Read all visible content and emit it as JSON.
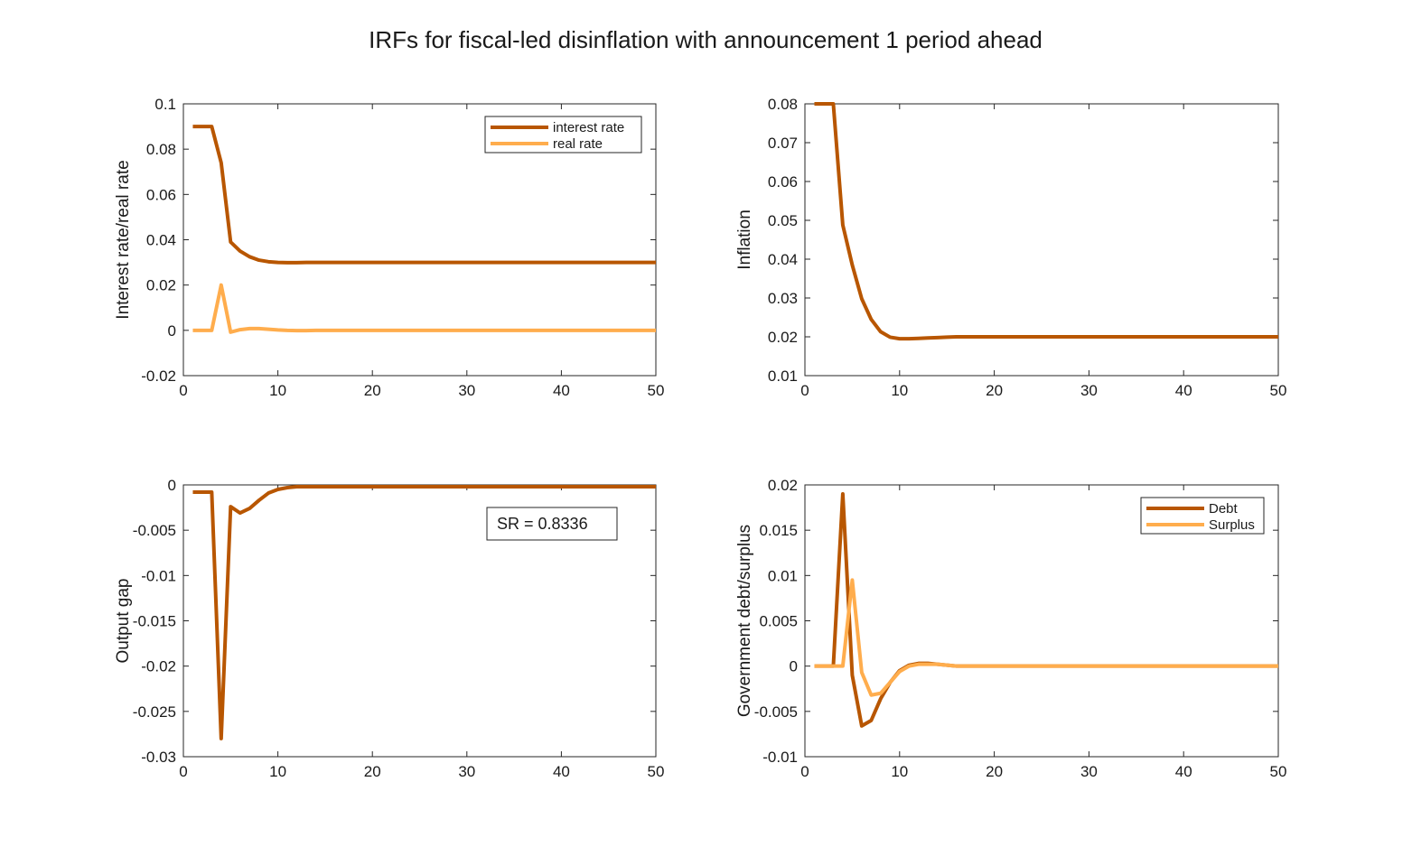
{
  "title": "IRFs for fiscal-led disinflation with announcement 1 period ahead",
  "colors": {
    "dark": "#B85600",
    "light": "#FFAD4D",
    "axis": "#262626"
  },
  "chart_data": [
    {
      "type": "line",
      "title": "",
      "xlabel": "",
      "ylabel": "Interest rate/real rate",
      "xlim": [
        0,
        50
      ],
      "ylim": [
        -0.02,
        0.1
      ],
      "xticks": [
        0,
        10,
        20,
        30,
        40,
        50
      ],
      "xtick_labels": [
        "0",
        "10",
        "20",
        "30",
        "40",
        "50"
      ],
      "yticks": [
        -0.02,
        0,
        0.02,
        0.04,
        0.06,
        0.08,
        0.1
      ],
      "ytick_labels": [
        "-0.02",
        "0",
        "0.02",
        "0.04",
        "0.06",
        "0.08",
        "0.1"
      ],
      "legend": "top-right",
      "series": [
        {
          "name": "interest rate",
          "color": "#B85600",
          "x": [
            1,
            2,
            3,
            4,
            5,
            6,
            7,
            8,
            9,
            10,
            11,
            12,
            13,
            14,
            15,
            16,
            20,
            30,
            40,
            50
          ],
          "y": [
            0.09,
            0.09,
            0.09,
            0.074,
            0.039,
            0.035,
            0.0325,
            0.031,
            0.0303,
            0.03,
            0.0299,
            0.0299,
            0.03,
            0.03,
            0.03,
            0.03,
            0.03,
            0.03,
            0.03,
            0.03
          ]
        },
        {
          "name": "real rate",
          "color": "#FFAD4D",
          "x": [
            1,
            2,
            3,
            4,
            5,
            6,
            7,
            8,
            9,
            10,
            11,
            12,
            13,
            14,
            15,
            20,
            30,
            40,
            50
          ],
          "y": [
            0,
            0,
            0,
            0.02,
            -0.0008,
            0.0003,
            0.0008,
            0.0008,
            0.0005,
            0.0002,
            0,
            -0.0001,
            -0.0001,
            0,
            0,
            0,
            0,
            0,
            0
          ]
        }
      ]
    },
    {
      "type": "line",
      "title": "",
      "xlabel": "",
      "ylabel": "Inflation",
      "xlim": [
        0,
        50
      ],
      "ylim": [
        0.01,
        0.08
      ],
      "xticks": [
        0,
        10,
        20,
        30,
        40,
        50
      ],
      "xtick_labels": [
        "0",
        "10",
        "20",
        "30",
        "40",
        "50"
      ],
      "yticks": [
        0.01,
        0.02,
        0.03,
        0.04,
        0.05,
        0.06,
        0.07,
        0.08
      ],
      "ytick_labels": [
        "0.01",
        "0.02",
        "0.03",
        "0.04",
        "0.05",
        "0.06",
        "0.07",
        "0.08"
      ],
      "series": [
        {
          "color": "#B85600",
          "x": [
            1,
            2,
            3,
            4,
            5,
            6,
            7,
            8,
            9,
            10,
            11,
            12,
            13,
            14,
            15,
            16,
            17,
            20,
            30,
            40,
            50
          ],
          "y": [
            0.08,
            0.08,
            0.08,
            0.0488,
            0.0385,
            0.0298,
            0.0245,
            0.0213,
            0.0199,
            0.0195,
            0.0195,
            0.0196,
            0.0197,
            0.0198,
            0.0199,
            0.02,
            0.02,
            0.02,
            0.02,
            0.02,
            0.02
          ]
        }
      ]
    },
    {
      "type": "line",
      "title": "",
      "xlabel": "",
      "ylabel": "Output gap",
      "xlim": [
        0,
        50
      ],
      "ylim": [
        -0.03,
        0
      ],
      "xticks": [
        0,
        10,
        20,
        30,
        40,
        50
      ],
      "xtick_labels": [
        "0",
        "10",
        "20",
        "30",
        "40",
        "50"
      ],
      "yticks": [
        -0.03,
        -0.025,
        -0.02,
        -0.015,
        -0.01,
        -0.005,
        0
      ],
      "ytick_labels": [
        "-0.03",
        "-0.025",
        "-0.02",
        "-0.015",
        "-0.01",
        "-0.005",
        "0"
      ],
      "annotation": "SR = 0.8336",
      "series": [
        {
          "color": "#B85600",
          "x": [
            1,
            2,
            3,
            4,
            5,
            6,
            7,
            8,
            9,
            10,
            11,
            12,
            13,
            14,
            15,
            20,
            30,
            40,
            50
          ],
          "y": [
            -0.0008,
            -0.0008,
            -0.0008,
            -0.028,
            -0.0024,
            -0.0031,
            -0.0026,
            -0.0017,
            -0.0009,
            -0.0005,
            -0.0003,
            -0.0002,
            -0.0002,
            -0.0002,
            -0.0002,
            -0.0002,
            -0.0002,
            -0.0002,
            -0.0002
          ]
        }
      ]
    },
    {
      "type": "line",
      "title": "",
      "xlabel": "",
      "ylabel": "Government debt/surplus",
      "xlim": [
        0,
        50
      ],
      "ylim": [
        -0.01,
        0.02
      ],
      "xticks": [
        0,
        10,
        20,
        30,
        40,
        50
      ],
      "xtick_labels": [
        "0",
        "10",
        "20",
        "30",
        "40",
        "50"
      ],
      "yticks": [
        -0.01,
        -0.005,
        0,
        0.005,
        0.01,
        0.015,
        0.02
      ],
      "ytick_labels": [
        "-0.01",
        "-0.005",
        "0",
        "0.005",
        "0.01",
        "0.015",
        "0.02"
      ],
      "legend": "top-right",
      "series": [
        {
          "name": "Debt",
          "color": "#B85600",
          "x": [
            1,
            2,
            3,
            4,
            5,
            6,
            7,
            8,
            9,
            10,
            11,
            12,
            13,
            14,
            15,
            16,
            17,
            18,
            20,
            30,
            40,
            50
          ],
          "y": [
            0,
            0,
            0,
            0.019,
            -0.001,
            -0.0066,
            -0.006,
            -0.0036,
            -0.0018,
            -0.0005,
            0.0001,
            0.0003,
            0.0003,
            0.0002,
            0.0001,
            0,
            0,
            0,
            0,
            0,
            0,
            0
          ]
        },
        {
          "name": "Surplus",
          "color": "#FFAD4D",
          "x": [
            1,
            2,
            3,
            4,
            5,
            6,
            7,
            8,
            9,
            10,
            11,
            12,
            13,
            14,
            15,
            16,
            17,
            18,
            20,
            30,
            40,
            50
          ],
          "y": [
            0,
            0,
            0,
            0,
            0.0095,
            -0.0007,
            -0.0032,
            -0.003,
            -0.0018,
            -0.0006,
            0,
            0.0002,
            0.0002,
            0.0002,
            0.0001,
            0,
            0,
            0,
            0,
            0,
            0,
            0
          ]
        }
      ]
    }
  ]
}
